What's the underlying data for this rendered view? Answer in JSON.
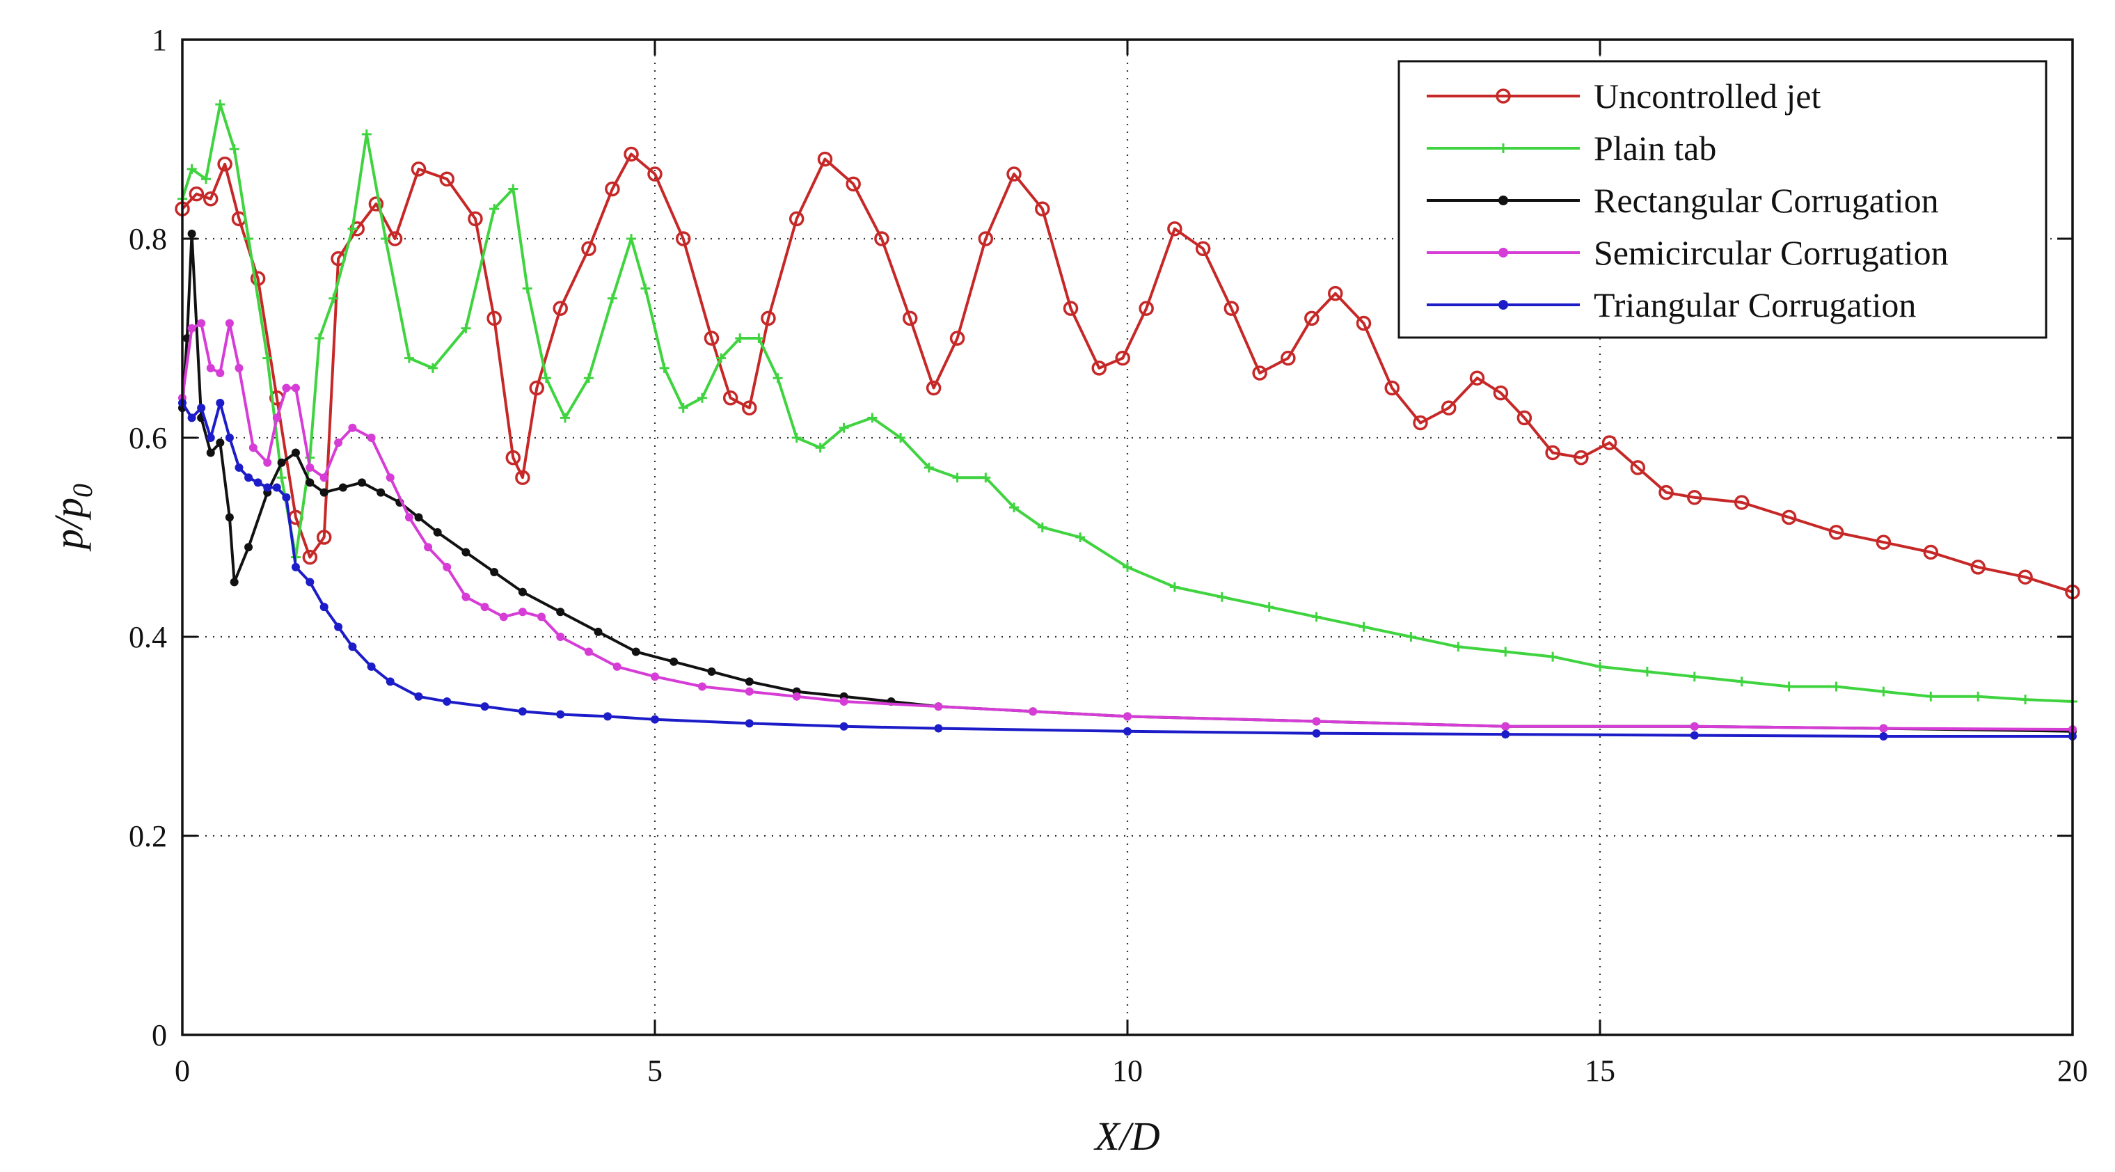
{
  "chart_data": {
    "type": "line",
    "title": "",
    "xlabel": "X/D",
    "ylabel": "p/p0",
    "ylabel_main": "p/p",
    "ylabel_sub": "0",
    "xlim": [
      0,
      20
    ],
    "ylim": [
      0,
      1
    ],
    "x_ticks": [
      0,
      5,
      10,
      15,
      20
    ],
    "y_ticks": [
      0,
      0.2,
      0.4,
      0.6,
      0.8,
      1
    ],
    "x_tick_labels": [
      "0",
      "5",
      "10",
      "15",
      "20"
    ],
    "y_tick_labels": [
      "0",
      "0.2",
      "0.4",
      "0.6",
      "0.8",
      "1"
    ],
    "grid": true,
    "legend_position": "top-right",
    "series": [
      {
        "name": "Uncontrolled jet",
        "color": "#c62828",
        "marker": "open-circle",
        "x": [
          0,
          0.15,
          0.3,
          0.45,
          0.6,
          0.8,
          1.0,
          1.2,
          1.35,
          1.5,
          1.65,
          1.85,
          2.05,
          2.25,
          2.5,
          2.8,
          3.1,
          3.3,
          3.5,
          3.6,
          3.75,
          4.0,
          4.3,
          4.55,
          4.75,
          5.0,
          5.3,
          5.6,
          5.8,
          6.0,
          6.2,
          6.5,
          6.8,
          7.1,
          7.4,
          7.7,
          7.95,
          8.2,
          8.5,
          8.8,
          9.1,
          9.4,
          9.7,
          9.95,
          10.2,
          10.5,
          10.8,
          11.1,
          11.4,
          11.7,
          11.95,
          12.2,
          12.5,
          12.8,
          13.1,
          13.4,
          13.7,
          13.95,
          14.2,
          14.5,
          14.8,
          15.1,
          15.4,
          15.7,
          16.0,
          16.5,
          17.0,
          17.5,
          18.0,
          18.5,
          19.0,
          19.5,
          20.0
        ],
        "y": [
          0.83,
          0.845,
          0.84,
          0.875,
          0.82,
          0.76,
          0.64,
          0.52,
          0.48,
          0.5,
          0.78,
          0.81,
          0.835,
          0.8,
          0.87,
          0.86,
          0.82,
          0.72,
          0.58,
          0.56,
          0.65,
          0.73,
          0.79,
          0.85,
          0.885,
          0.865,
          0.8,
          0.7,
          0.64,
          0.63,
          0.72,
          0.82,
          0.88,
          0.855,
          0.8,
          0.72,
          0.65,
          0.7,
          0.8,
          0.865,
          0.83,
          0.73,
          0.67,
          0.68,
          0.73,
          0.81,
          0.79,
          0.73,
          0.665,
          0.68,
          0.72,
          0.745,
          0.715,
          0.65,
          0.615,
          0.63,
          0.66,
          0.645,
          0.62,
          0.585,
          0.58,
          0.595,
          0.57,
          0.545,
          0.54,
          0.535,
          0.52,
          0.505,
          0.495,
          0.485,
          0.47,
          0.46,
          0.445
        ]
      },
      {
        "name": "Plain tab",
        "color": "#3fd43f",
        "marker": "plus",
        "x": [
          0,
          0.1,
          0.25,
          0.4,
          0.55,
          0.7,
          0.9,
          1.05,
          1.2,
          1.35,
          1.45,
          1.6,
          1.8,
          1.95,
          2.15,
          2.4,
          2.65,
          3.0,
          3.3,
          3.5,
          3.65,
          3.85,
          4.05,
          4.3,
          4.55,
          4.75,
          4.9,
          5.1,
          5.3,
          5.5,
          5.7,
          5.9,
          6.1,
          6.3,
          6.5,
          6.75,
          7.0,
          7.3,
          7.6,
          7.9,
          8.2,
          8.5,
          8.8,
          9.1,
          9.5,
          10.0,
          10.5,
          11.0,
          11.5,
          12.0,
          12.5,
          13.0,
          13.5,
          14.0,
          14.5,
          15.0,
          15.5,
          16.0,
          16.5,
          17.0,
          17.5,
          18.0,
          18.5,
          19.0,
          19.5,
          20.0
        ],
        "y": [
          0.84,
          0.87,
          0.86,
          0.935,
          0.89,
          0.8,
          0.68,
          0.56,
          0.48,
          0.58,
          0.7,
          0.74,
          0.81,
          0.905,
          0.8,
          0.68,
          0.67,
          0.71,
          0.83,
          0.85,
          0.75,
          0.66,
          0.62,
          0.66,
          0.74,
          0.8,
          0.75,
          0.67,
          0.63,
          0.64,
          0.68,
          0.7,
          0.7,
          0.66,
          0.6,
          0.59,
          0.61,
          0.62,
          0.6,
          0.57,
          0.56,
          0.56,
          0.53,
          0.51,
          0.5,
          0.47,
          0.45,
          0.44,
          0.43,
          0.42,
          0.41,
          0.4,
          0.39,
          0.385,
          0.38,
          0.37,
          0.365,
          0.36,
          0.355,
          0.35,
          0.35,
          0.345,
          0.34,
          0.34,
          0.337,
          0.335
        ]
      },
      {
        "name": "Rectangular Corrugation",
        "color": "#111111",
        "marker": "dot",
        "x": [
          0,
          0.05,
          0.1,
          0.2,
          0.3,
          0.4,
          0.5,
          0.55,
          0.7,
          0.9,
          1.05,
          1.2,
          1.35,
          1.5,
          1.7,
          1.9,
          2.1,
          2.3,
          2.5,
          2.7,
          3.0,
          3.3,
          3.6,
          4.0,
          4.4,
          4.8,
          5.2,
          5.6,
          6.0,
          6.5,
          7.0,
          7.5,
          8.0,
          9.0,
          10.0,
          12.0,
          14.0,
          16.0,
          18.0,
          20.0
        ],
        "y": [
          0.63,
          0.7,
          0.805,
          0.62,
          0.585,
          0.595,
          0.52,
          0.455,
          0.49,
          0.545,
          0.575,
          0.585,
          0.555,
          0.545,
          0.55,
          0.555,
          0.545,
          0.535,
          0.52,
          0.505,
          0.485,
          0.465,
          0.445,
          0.425,
          0.405,
          0.385,
          0.375,
          0.365,
          0.355,
          0.345,
          0.34,
          0.335,
          0.33,
          0.325,
          0.32,
          0.315,
          0.31,
          0.31,
          0.308,
          0.305
        ]
      },
      {
        "name": "Semicircular Corrugation",
        "color": "#d63cd6",
        "marker": "dot",
        "x": [
          0,
          0.1,
          0.2,
          0.3,
          0.4,
          0.5,
          0.6,
          0.75,
          0.9,
          1.0,
          1.1,
          1.2,
          1.35,
          1.5,
          1.65,
          1.8,
          2.0,
          2.2,
          2.4,
          2.6,
          2.8,
          3.0,
          3.2,
          3.4,
          3.6,
          3.8,
          4.0,
          4.3,
          4.6,
          5.0,
          5.5,
          6.0,
          6.5,
          7.0,
          8.0,
          9.0,
          10.0,
          12.0,
          14.0,
          16.0,
          18.0,
          20.0
        ],
        "y": [
          0.64,
          0.71,
          0.715,
          0.67,
          0.665,
          0.715,
          0.67,
          0.59,
          0.575,
          0.62,
          0.65,
          0.65,
          0.57,
          0.56,
          0.595,
          0.61,
          0.6,
          0.56,
          0.52,
          0.49,
          0.47,
          0.44,
          0.43,
          0.42,
          0.425,
          0.42,
          0.4,
          0.385,
          0.37,
          0.36,
          0.35,
          0.345,
          0.34,
          0.335,
          0.33,
          0.325,
          0.32,
          0.315,
          0.31,
          0.31,
          0.308,
          0.307
        ]
      },
      {
        "name": "Triangular Corrugation",
        "color": "#1c1cc8",
        "marker": "dot",
        "x": [
          0,
          0.1,
          0.2,
          0.3,
          0.4,
          0.5,
          0.6,
          0.7,
          0.8,
          0.9,
          1.0,
          1.1,
          1.2,
          1.35,
          1.5,
          1.65,
          1.8,
          2.0,
          2.2,
          2.5,
          2.8,
          3.2,
          3.6,
          4.0,
          4.5,
          5.0,
          6.0,
          7.0,
          8.0,
          10.0,
          12.0,
          14.0,
          16.0,
          18.0,
          20.0
        ],
        "y": [
          0.635,
          0.62,
          0.63,
          0.6,
          0.635,
          0.6,
          0.57,
          0.56,
          0.555,
          0.55,
          0.55,
          0.54,
          0.47,
          0.455,
          0.43,
          0.41,
          0.39,
          0.37,
          0.355,
          0.34,
          0.335,
          0.33,
          0.325,
          0.322,
          0.32,
          0.317,
          0.313,
          0.31,
          0.308,
          0.305,
          0.303,
          0.302,
          0.301,
          0.3,
          0.3
        ]
      }
    ]
  }
}
